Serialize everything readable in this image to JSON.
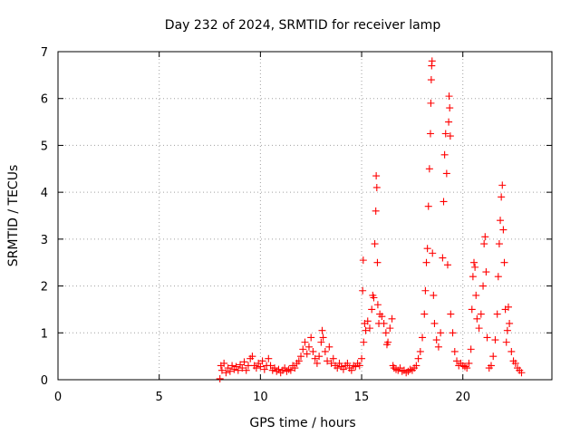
{
  "chart_data": {
    "type": "scatter",
    "title": "Day 232 of 2024, SRMTID for receiver lamp",
    "xlabel": "GPS time / hours",
    "ylabel": "SRMTID / TECUs",
    "xlim": [
      0,
      24.4
    ],
    "ylim": [
      0,
      7
    ],
    "xticks": [
      0,
      5,
      10,
      15,
      20
    ],
    "yticks": [
      0,
      1,
      2,
      3,
      4,
      5,
      6,
      7
    ],
    "xtick_labels": [
      "0",
      "5",
      "10",
      "15",
      "20"
    ],
    "ytick_labels": [
      "0",
      "1",
      "2",
      "3",
      "4",
      "5",
      "6",
      "7"
    ],
    "grid": true,
    "marker": "+",
    "color": "#ff0000",
    "series": [
      {
        "name": "SRMTID",
        "points": [
          [
            8.0,
            0.02
          ],
          [
            8.05,
            0.3
          ],
          [
            8.1,
            0.2
          ],
          [
            8.2,
            0.35
          ],
          [
            8.3,
            0.15
          ],
          [
            8.4,
            0.25
          ],
          [
            8.5,
            0.18
          ],
          [
            8.6,
            0.3
          ],
          [
            8.7,
            0.22
          ],
          [
            8.8,
            0.28
          ],
          [
            8.9,
            0.2
          ],
          [
            9.0,
            0.32
          ],
          [
            9.1,
            0.25
          ],
          [
            9.2,
            0.38
          ],
          [
            9.3,
            0.2
          ],
          [
            9.4,
            0.3
          ],
          [
            9.5,
            0.45
          ],
          [
            9.6,
            0.5
          ],
          [
            9.7,
            0.3
          ],
          [
            9.8,
            0.25
          ],
          [
            9.9,
            0.35
          ],
          [
            10.0,
            0.28
          ],
          [
            10.1,
            0.4
          ],
          [
            10.2,
            0.22
          ],
          [
            10.3,
            0.3
          ],
          [
            10.4,
            0.45
          ],
          [
            10.5,
            0.3
          ],
          [
            10.6,
            0.2
          ],
          [
            10.7,
            0.25
          ],
          [
            10.8,
            0.18
          ],
          [
            10.9,
            0.22
          ],
          [
            11.0,
            0.15
          ],
          [
            11.1,
            0.2
          ],
          [
            11.2,
            0.25
          ],
          [
            11.3,
            0.18
          ],
          [
            11.4,
            0.22
          ],
          [
            11.5,
            0.2
          ],
          [
            11.6,
            0.3
          ],
          [
            11.7,
            0.25
          ],
          [
            11.8,
            0.35
          ],
          [
            11.9,
            0.4
          ],
          [
            12.0,
            0.5
          ],
          [
            12.1,
            0.65
          ],
          [
            12.2,
            0.8
          ],
          [
            12.3,
            0.55
          ],
          [
            12.4,
            0.7
          ],
          [
            12.5,
            0.9
          ],
          [
            12.6,
            0.6
          ],
          [
            12.7,
            0.45
          ],
          [
            12.8,
            0.35
          ],
          [
            12.9,
            0.5
          ],
          [
            13.0,
            0.8
          ],
          [
            13.05,
            1.05
          ],
          [
            13.1,
            0.9
          ],
          [
            13.2,
            0.6
          ],
          [
            13.3,
            0.4
          ],
          [
            13.4,
            0.7
          ],
          [
            13.5,
            0.35
          ],
          [
            13.6,
            0.45
          ],
          [
            13.7,
            0.3
          ],
          [
            13.8,
            0.25
          ],
          [
            13.9,
            0.35
          ],
          [
            14.0,
            0.28
          ],
          [
            14.1,
            0.22
          ],
          [
            14.2,
            0.3
          ],
          [
            14.3,
            0.35
          ],
          [
            14.4,
            0.25
          ],
          [
            14.5,
            0.2
          ],
          [
            14.6,
            0.3
          ],
          [
            14.7,
            0.28
          ],
          [
            14.8,
            0.35
          ],
          [
            14.9,
            0.3
          ],
          [
            15.0,
            0.45
          ],
          [
            15.05,
            1.9
          ],
          [
            15.08,
            2.55
          ],
          [
            15.1,
            0.8
          ],
          [
            15.15,
            1.2
          ],
          [
            15.2,
            1.05
          ],
          [
            15.3,
            1.25
          ],
          [
            15.4,
            1.1
          ],
          [
            15.5,
            1.5
          ],
          [
            15.55,
            1.8
          ],
          [
            15.6,
            1.75
          ],
          [
            15.65,
            2.9
          ],
          [
            15.7,
            3.6
          ],
          [
            15.72,
            4.35
          ],
          [
            15.75,
            4.1
          ],
          [
            15.78,
            2.5
          ],
          [
            15.8,
            1.6
          ],
          [
            15.85,
            1.2
          ],
          [
            15.9,
            1.4
          ],
          [
            16.0,
            1.35
          ],
          [
            16.1,
            1.2
          ],
          [
            16.2,
            1.0
          ],
          [
            16.25,
            0.75
          ],
          [
            16.3,
            0.8
          ],
          [
            16.4,
            1.1
          ],
          [
            16.5,
            1.3
          ],
          [
            16.55,
            0.3
          ],
          [
            16.6,
            0.25
          ],
          [
            16.7,
            0.22
          ],
          [
            16.8,
            0.2
          ],
          [
            16.9,
            0.25
          ],
          [
            17.0,
            0.18
          ],
          [
            17.1,
            0.2
          ],
          [
            17.2,
            0.15
          ],
          [
            17.3,
            0.18
          ],
          [
            17.4,
            0.22
          ],
          [
            17.5,
            0.2
          ],
          [
            17.6,
            0.25
          ],
          [
            17.7,
            0.3
          ],
          [
            17.8,
            0.45
          ],
          [
            17.9,
            0.6
          ],
          [
            18.0,
            0.9
          ],
          [
            18.1,
            1.4
          ],
          [
            18.15,
            1.9
          ],
          [
            18.2,
            2.5
          ],
          [
            18.25,
            2.8
          ],
          [
            18.3,
            3.7
          ],
          [
            18.35,
            4.5
          ],
          [
            18.4,
            5.25
          ],
          [
            18.42,
            5.9
          ],
          [
            18.44,
            6.4
          ],
          [
            18.46,
            6.7
          ],
          [
            18.48,
            6.8
          ],
          [
            18.5,
            2.7
          ],
          [
            18.55,
            1.8
          ],
          [
            18.6,
            1.2
          ],
          [
            18.7,
            0.85
          ],
          [
            18.8,
            0.7
          ],
          [
            18.9,
            1.0
          ],
          [
            19.0,
            2.6
          ],
          [
            19.05,
            3.8
          ],
          [
            19.1,
            4.8
          ],
          [
            19.15,
            5.25
          ],
          [
            19.2,
            4.4
          ],
          [
            19.25,
            2.45
          ],
          [
            19.3,
            5.5
          ],
          [
            19.32,
            6.05
          ],
          [
            19.35,
            5.8
          ],
          [
            19.38,
            5.2
          ],
          [
            19.4,
            1.4
          ],
          [
            19.5,
            1.0
          ],
          [
            19.6,
            0.6
          ],
          [
            19.7,
            0.4
          ],
          [
            19.8,
            0.3
          ],
          [
            19.9,
            0.35
          ],
          [
            20.0,
            0.3
          ],
          [
            20.1,
            0.28
          ],
          [
            20.2,
            0.25
          ],
          [
            20.3,
            0.35
          ],
          [
            20.4,
            0.65
          ],
          [
            20.45,
            1.5
          ],
          [
            20.5,
            2.2
          ],
          [
            20.55,
            2.5
          ],
          [
            20.6,
            2.4
          ],
          [
            20.65,
            1.8
          ],
          [
            20.7,
            1.3
          ],
          [
            20.8,
            1.1
          ],
          [
            20.9,
            1.4
          ],
          [
            21.0,
            2.0
          ],
          [
            21.05,
            2.9
          ],
          [
            21.1,
            3.05
          ],
          [
            21.15,
            2.3
          ],
          [
            21.2,
            0.9
          ],
          [
            21.3,
            0.25
          ],
          [
            21.4,
            0.3
          ],
          [
            21.5,
            0.5
          ],
          [
            21.6,
            0.85
          ],
          [
            21.7,
            1.4
          ],
          [
            21.75,
            2.2
          ],
          [
            21.8,
            2.9
          ],
          [
            21.85,
            3.4
          ],
          [
            21.9,
            3.9
          ],
          [
            21.95,
            4.15
          ],
          [
            22.0,
            3.2
          ],
          [
            22.05,
            2.5
          ],
          [
            22.1,
            1.5
          ],
          [
            22.15,
            0.8
          ],
          [
            22.2,
            1.05
          ],
          [
            22.25,
            1.55
          ],
          [
            22.3,
            1.2
          ],
          [
            22.4,
            0.6
          ],
          [
            22.5,
            0.4
          ],
          [
            22.6,
            0.35
          ],
          [
            22.7,
            0.25
          ],
          [
            22.8,
            0.2
          ],
          [
            22.9,
            0.15
          ]
        ]
      }
    ]
  }
}
